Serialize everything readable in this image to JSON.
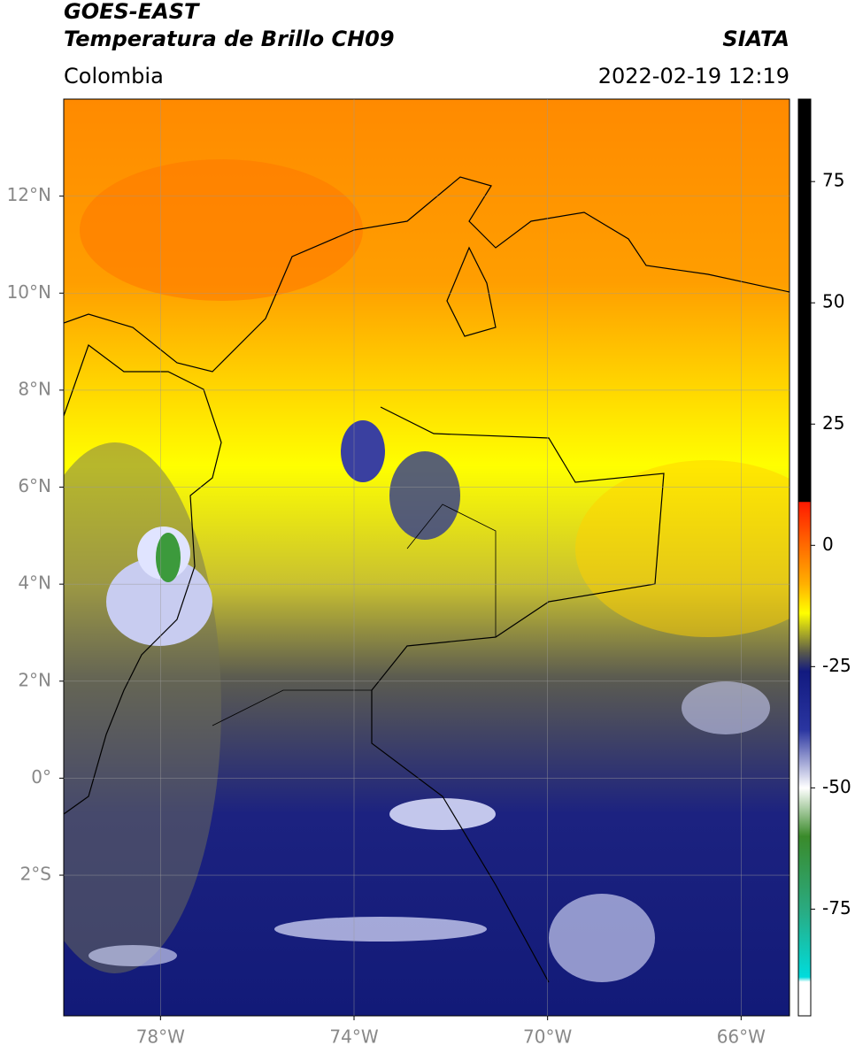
{
  "header": {
    "title": "GOES-EAST",
    "subtitle": "Temperatura de Brillo CH09",
    "source": "SIATA",
    "region": "Colombia",
    "datetime": "2022-02-19 12:19"
  },
  "map": {
    "xlim": [
      -80,
      -65
    ],
    "ylim": [
      -4.9,
      14
    ],
    "xticks": [
      {
        "value": -78,
        "label": "78°W"
      },
      {
        "value": -74,
        "label": "74°W"
      },
      {
        "value": -70,
        "label": "70°W"
      },
      {
        "value": -66,
        "label": "66°W"
      }
    ],
    "yticks": [
      {
        "value": 12,
        "label": "12°N"
      },
      {
        "value": 10,
        "label": "10°N"
      },
      {
        "value": 8,
        "label": "8°N"
      },
      {
        "value": 6,
        "label": "6°N"
      },
      {
        "value": 4,
        "label": "4°N"
      },
      {
        "value": 2,
        "label": "2°N"
      },
      {
        "value": 0,
        "label": "0°"
      },
      {
        "value": -2,
        "label": "2°S"
      }
    ],
    "grid": true
  },
  "colorbar": {
    "lim": [
      -97,
      92
    ],
    "ticks": [
      75,
      50,
      25,
      0,
      -25,
      -50,
      -75
    ],
    "stops": [
      {
        "value": 92,
        "color": "#000000"
      },
      {
        "value": 9,
        "color": "#000000"
      },
      {
        "value": 8.9,
        "color": "#ff1a00"
      },
      {
        "value": 0,
        "color": "#ff6a00"
      },
      {
        "value": -8,
        "color": "#ffb000"
      },
      {
        "value": -14,
        "color": "#ffff00"
      },
      {
        "value": -22,
        "color": "#5a5a4a"
      },
      {
        "value": -26,
        "color": "#121a80"
      },
      {
        "value": -38,
        "color": "#2a35a0"
      },
      {
        "value": -50,
        "color": "#ffffff"
      },
      {
        "value": -60,
        "color": "#3a8a2a"
      },
      {
        "value": -75,
        "color": "#2aaa80"
      },
      {
        "value": -89,
        "color": "#00dcdc"
      },
      {
        "value": -90,
        "color": "#ffffff"
      },
      {
        "value": -97,
        "color": "#ffffff"
      }
    ]
  }
}
